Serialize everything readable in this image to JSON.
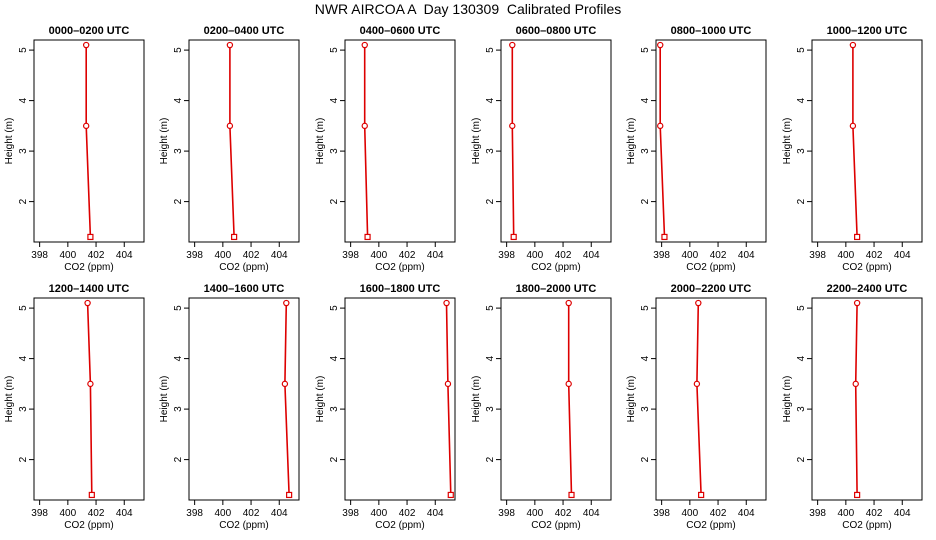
{
  "page": {
    "title": "NWR AIRCOA A  Day 130309  Calibrated Profiles"
  },
  "chart_data": [
    {
      "type": "line",
      "title": "0000–0200 UTC",
      "xlabel": "CO2 (ppm)",
      "ylabel": "Height (m)",
      "xlim": [
        397.6,
        405.4
      ],
      "ylim": [
        1.2,
        5.2
      ],
      "x_ticks": [
        "398",
        "400",
        "402",
        "404"
      ],
      "y_ticks": [
        "2",
        "3",
        "4",
        "5"
      ],
      "heights": [
        1.3,
        3.5,
        5.1
      ],
      "values": [
        401.6,
        401.3,
        401.3
      ]
    },
    {
      "type": "line",
      "title": "0200–0400 UTC",
      "xlabel": "CO2 (ppm)",
      "ylabel": "Height (m)",
      "xlim": [
        397.6,
        405.4
      ],
      "ylim": [
        1.2,
        5.2
      ],
      "x_ticks": [
        "398",
        "400",
        "402",
        "404"
      ],
      "y_ticks": [
        "2",
        "3",
        "4",
        "5"
      ],
      "heights": [
        1.3,
        3.5,
        5.1
      ],
      "values": [
        400.8,
        400.5,
        400.5
      ]
    },
    {
      "type": "line",
      "title": "0400–0600 UTC",
      "xlabel": "CO2 (ppm)",
      "ylabel": "Height (m)",
      "xlim": [
        397.6,
        405.4
      ],
      "ylim": [
        1.2,
        5.2
      ],
      "x_ticks": [
        "398",
        "400",
        "402",
        "404"
      ],
      "y_ticks": [
        "2",
        "3",
        "4",
        "5"
      ],
      "heights": [
        1.3,
        3.5,
        5.1
      ],
      "values": [
        399.2,
        399.0,
        399.0
      ]
    },
    {
      "type": "line",
      "title": "0600–0800 UTC",
      "xlabel": "CO2 (ppm)",
      "ylabel": "Height (m)",
      "xlim": [
        397.6,
        405.4
      ],
      "ylim": [
        1.2,
        5.2
      ],
      "x_ticks": [
        "398",
        "400",
        "402",
        "404"
      ],
      "y_ticks": [
        "2",
        "3",
        "4",
        "5"
      ],
      "heights": [
        1.3,
        3.5,
        5.1
      ],
      "values": [
        398.5,
        398.4,
        398.4
      ]
    },
    {
      "type": "line",
      "title": "0800–1000 UTC",
      "xlabel": "CO2 (ppm)",
      "ylabel": "Height (m)",
      "xlim": [
        397.6,
        405.4
      ],
      "ylim": [
        1.2,
        5.2
      ],
      "x_ticks": [
        "398",
        "400",
        "402",
        "404"
      ],
      "y_ticks": [
        "2",
        "3",
        "4",
        "5"
      ],
      "heights": [
        1.3,
        3.5,
        5.1
      ],
      "values": [
        398.2,
        397.9,
        397.9
      ]
    },
    {
      "type": "line",
      "title": "1000–1200 UTC",
      "xlabel": "CO2 (ppm)",
      "ylabel": "Height (m)",
      "xlim": [
        397.6,
        405.4
      ],
      "ylim": [
        1.2,
        5.2
      ],
      "x_ticks": [
        "398",
        "400",
        "402",
        "404"
      ],
      "y_ticks": [
        "2",
        "3",
        "4",
        "5"
      ],
      "heights": [
        1.3,
        3.5,
        5.1
      ],
      "values": [
        400.8,
        400.5,
        400.5
      ]
    },
    {
      "type": "line",
      "title": "1200–1400 UTC",
      "xlabel": "CO2 (ppm)",
      "ylabel": "Height (m)",
      "xlim": [
        397.6,
        405.4
      ],
      "ylim": [
        1.2,
        5.2
      ],
      "x_ticks": [
        "398",
        "400",
        "402",
        "404"
      ],
      "y_ticks": [
        "2",
        "3",
        "4",
        "5"
      ],
      "heights": [
        1.3,
        3.5,
        5.1
      ],
      "values": [
        401.7,
        401.6,
        401.4
      ]
    },
    {
      "type": "line",
      "title": "1400–1600 UTC",
      "xlabel": "CO2 (ppm)",
      "ylabel": "Height (m)",
      "xlim": [
        397.6,
        405.4
      ],
      "ylim": [
        1.2,
        5.2
      ],
      "x_ticks": [
        "398",
        "400",
        "402",
        "404"
      ],
      "y_ticks": [
        "2",
        "3",
        "4",
        "5"
      ],
      "heights": [
        1.3,
        3.5,
        5.1
      ],
      "values": [
        404.7,
        404.4,
        404.5
      ]
    },
    {
      "type": "line",
      "title": "1600–1800 UTC",
      "xlabel": "CO2 (ppm)",
      "ylabel": "Height (m)",
      "xlim": [
        397.6,
        405.4
      ],
      "ylim": [
        1.2,
        5.2
      ],
      "x_ticks": [
        "398",
        "400",
        "402",
        "404"
      ],
      "y_ticks": [
        "2",
        "3",
        "4",
        "5"
      ],
      "heights": [
        1.3,
        3.5,
        5.1
      ],
      "values": [
        405.1,
        404.9,
        404.8
      ]
    },
    {
      "type": "line",
      "title": "1800–2000 UTC",
      "xlabel": "CO2 (ppm)",
      "ylabel": "Height (m)",
      "xlim": [
        397.6,
        405.4
      ],
      "ylim": [
        1.2,
        5.2
      ],
      "x_ticks": [
        "398",
        "400",
        "402",
        "404"
      ],
      "y_ticks": [
        "2",
        "3",
        "4",
        "5"
      ],
      "heights": [
        1.3,
        3.5,
        5.1
      ],
      "values": [
        402.6,
        402.4,
        402.4
      ]
    },
    {
      "type": "line",
      "title": "2000–2200 UTC",
      "xlabel": "CO2 (ppm)",
      "ylabel": "Height (m)",
      "xlim": [
        397.6,
        405.4
      ],
      "ylim": [
        1.2,
        5.2
      ],
      "x_ticks": [
        "398",
        "400",
        "402",
        "404"
      ],
      "y_ticks": [
        "2",
        "3",
        "4",
        "5"
      ],
      "heights": [
        1.3,
        3.5,
        5.1
      ],
      "values": [
        400.8,
        400.5,
        400.6
      ]
    },
    {
      "type": "line",
      "title": "2200–2400 UTC",
      "xlabel": "CO2 (ppm)",
      "ylabel": "Height (m)",
      "xlim": [
        397.6,
        405.4
      ],
      "ylim": [
        1.2,
        5.2
      ],
      "x_ticks": [
        "398",
        "400",
        "402",
        "404"
      ],
      "y_ticks": [
        "2",
        "3",
        "4",
        "5"
      ],
      "heights": [
        1.3,
        3.5,
        5.1
      ],
      "values": [
        400.8,
        400.7,
        400.8
      ]
    }
  ],
  "colors": {
    "series": "#dd0000",
    "axis": "#000000",
    "background": "#ffffff"
  }
}
